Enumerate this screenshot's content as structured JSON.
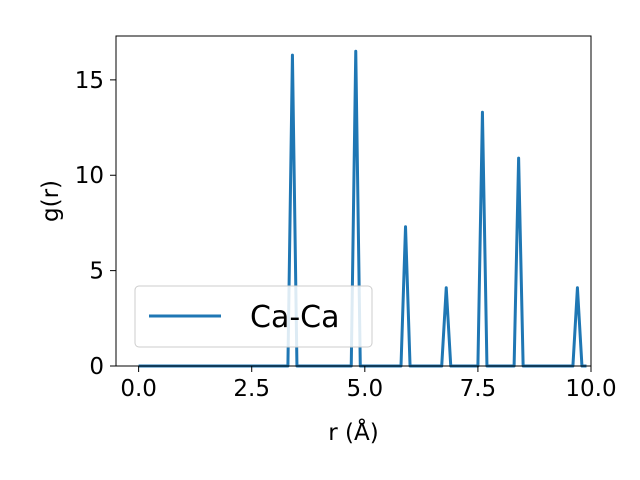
{
  "chart_data": {
    "type": "line",
    "xlabel": "r (Å)",
    "ylabel": "g(r)",
    "xlim": [
      -0.5,
      10.0
    ],
    "ylim": [
      0,
      17.3
    ],
    "xticks": [
      0.0,
      2.5,
      5.0,
      7.5,
      10.0
    ],
    "xtick_labels": [
      "0.0",
      "2.5",
      "5.0",
      "7.5",
      "10.0"
    ],
    "yticks": [
      0,
      5,
      10,
      15
    ],
    "ytick_labels": [
      "0",
      "5",
      "10",
      "15"
    ],
    "grid": false,
    "legend_position": "lower-left",
    "series": [
      {
        "name": "Ca-Ca",
        "color": "#1f77b4",
        "x": [
          0.0,
          3.3,
          3.4,
          3.5,
          4.7,
          4.8,
          4.9,
          5.8,
          5.9,
          6.0,
          6.7,
          6.8,
          6.9,
          7.5,
          7.6,
          7.7,
          8.3,
          8.4,
          8.5,
          9.6,
          9.7,
          9.8,
          9.9
        ],
        "y": [
          0,
          0,
          16.3,
          0,
          0,
          16.5,
          0,
          0,
          7.3,
          0,
          0,
          4.1,
          0,
          0,
          13.3,
          0,
          0,
          10.9,
          0,
          0,
          4.1,
          0,
          0
        ]
      }
    ]
  }
}
